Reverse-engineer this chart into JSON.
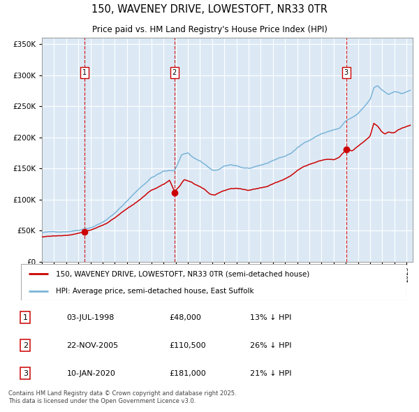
{
  "title": "150, WAVENEY DRIVE, LOWESTOFT, NR33 0TR",
  "subtitle": "Price paid vs. HM Land Registry's House Price Index (HPI)",
  "legend_line1": "150, WAVENEY DRIVE, LOWESTOFT, NR33 0TR (semi-detached house)",
  "legend_line2": "HPI: Average price, semi-detached house, East Suffolk",
  "footer": "Contains HM Land Registry data © Crown copyright and database right 2025.\nThis data is licensed under the Open Government Licence v3.0.",
  "row_entries": [
    [
      "1",
      "03-JUL-1998",
      "£48,000",
      "13% ↓ HPI"
    ],
    [
      "2",
      "22-NOV-2005",
      "£110,500",
      "26% ↓ HPI"
    ],
    [
      "3",
      "10-JAN-2020",
      "£181,000",
      "21% ↓ HPI"
    ]
  ],
  "hpi_color": "#7ab4d8",
  "price_paid_color": "#cc0000",
  "background_color": "#dce9f5",
  "grid_color": "#ffffff",
  "vline_color": "#cc0000",
  "ylim": [
    0,
    360000
  ],
  "xlim_start": 1995.0,
  "xlim_end": 2025.5,
  "sale_years": [
    1998.503,
    2005.896,
    2020.036
  ],
  "sale_prices": [
    48000,
    110500,
    181000
  ],
  "sale_labels": [
    "1",
    "2",
    "3"
  ],
  "hpi_keypoints": [
    [
      1995.0,
      47000
    ],
    [
      1996.0,
      47500
    ],
    [
      1997.0,
      49000
    ],
    [
      1998.0,
      52000
    ],
    [
      1998.503,
      55000
    ],
    [
      1999.0,
      57000
    ],
    [
      2000.0,
      66000
    ],
    [
      2001.0,
      80000
    ],
    [
      2002.0,
      100000
    ],
    [
      2003.0,
      120000
    ],
    [
      2004.0,
      138000
    ],
    [
      2005.0,
      148000
    ],
    [
      2005.9,
      149000
    ],
    [
      2006.0,
      153000
    ],
    [
      2006.5,
      175000
    ],
    [
      2007.0,
      178000
    ],
    [
      2007.5,
      170000
    ],
    [
      2008.0,
      165000
    ],
    [
      2008.5,
      158000
    ],
    [
      2009.0,
      149000
    ],
    [
      2009.5,
      150000
    ],
    [
      2010.0,
      155000
    ],
    [
      2010.5,
      157000
    ],
    [
      2011.0,
      156000
    ],
    [
      2011.5,
      153000
    ],
    [
      2012.0,
      152000
    ],
    [
      2012.5,
      153000
    ],
    [
      2013.0,
      155000
    ],
    [
      2013.5,
      158000
    ],
    [
      2014.0,
      163000
    ],
    [
      2014.5,
      167000
    ],
    [
      2015.0,
      170000
    ],
    [
      2015.5,
      175000
    ],
    [
      2016.0,
      183000
    ],
    [
      2016.5,
      190000
    ],
    [
      2017.0,
      196000
    ],
    [
      2017.5,
      202000
    ],
    [
      2018.0,
      207000
    ],
    [
      2018.5,
      210000
    ],
    [
      2019.0,
      213000
    ],
    [
      2019.5,
      216000
    ],
    [
      2020.036,
      228000
    ],
    [
      2020.5,
      232000
    ],
    [
      2021.0,
      238000
    ],
    [
      2021.5,
      248000
    ],
    [
      2022.0,
      260000
    ],
    [
      2022.3,
      278000
    ],
    [
      2022.6,
      282000
    ],
    [
      2022.9,
      276000
    ],
    [
      2023.2,
      272000
    ],
    [
      2023.5,
      268000
    ],
    [
      2023.8,
      271000
    ],
    [
      2024.0,
      274000
    ],
    [
      2024.3,
      272000
    ],
    [
      2024.6,
      270000
    ],
    [
      2025.0,
      273000
    ],
    [
      2025.3,
      275000
    ]
  ],
  "pp_keypoints": [
    [
      1995.0,
      40000
    ],
    [
      1996.0,
      40500
    ],
    [
      1997.0,
      42000
    ],
    [
      1998.0,
      45000
    ],
    [
      1998.503,
      48000
    ],
    [
      1999.0,
      50000
    ],
    [
      2000.0,
      58000
    ],
    [
      2001.0,
      70000
    ],
    [
      2002.0,
      84000
    ],
    [
      2003.0,
      97000
    ],
    [
      2004.0,
      112000
    ],
    [
      2005.0,
      122000
    ],
    [
      2005.5,
      128000
    ],
    [
      2005.9,
      110500
    ],
    [
      2006.3,
      118000
    ],
    [
      2006.7,
      130000
    ],
    [
      2007.0,
      128000
    ],
    [
      2007.3,
      126000
    ],
    [
      2007.6,
      122000
    ],
    [
      2008.0,
      118000
    ],
    [
      2008.4,
      113000
    ],
    [
      2008.8,
      106000
    ],
    [
      2009.2,
      104000
    ],
    [
      2009.6,
      108000
    ],
    [
      2010.0,
      112000
    ],
    [
      2010.5,
      115000
    ],
    [
      2011.0,
      116000
    ],
    [
      2011.5,
      114000
    ],
    [
      2012.0,
      112000
    ],
    [
      2012.5,
      114000
    ],
    [
      2013.0,
      116000
    ],
    [
      2013.5,
      118000
    ],
    [
      2014.0,
      122000
    ],
    [
      2014.5,
      126000
    ],
    [
      2015.0,
      130000
    ],
    [
      2015.5,
      135000
    ],
    [
      2016.0,
      143000
    ],
    [
      2016.5,
      150000
    ],
    [
      2017.0,
      154000
    ],
    [
      2017.5,
      157000
    ],
    [
      2018.0,
      160000
    ],
    [
      2018.5,
      163000
    ],
    [
      2019.0,
      163000
    ],
    [
      2019.5,
      168000
    ],
    [
      2020.036,
      181000
    ],
    [
      2020.5,
      178000
    ],
    [
      2021.0,
      185000
    ],
    [
      2021.5,
      193000
    ],
    [
      2022.0,
      202000
    ],
    [
      2022.3,
      222000
    ],
    [
      2022.6,
      218000
    ],
    [
      2022.9,
      210000
    ],
    [
      2023.2,
      205000
    ],
    [
      2023.5,
      208000
    ],
    [
      2023.8,
      207000
    ],
    [
      2024.0,
      207000
    ],
    [
      2024.3,
      212000
    ],
    [
      2024.6,
      215000
    ],
    [
      2025.0,
      218000
    ],
    [
      2025.3,
      220000
    ]
  ]
}
